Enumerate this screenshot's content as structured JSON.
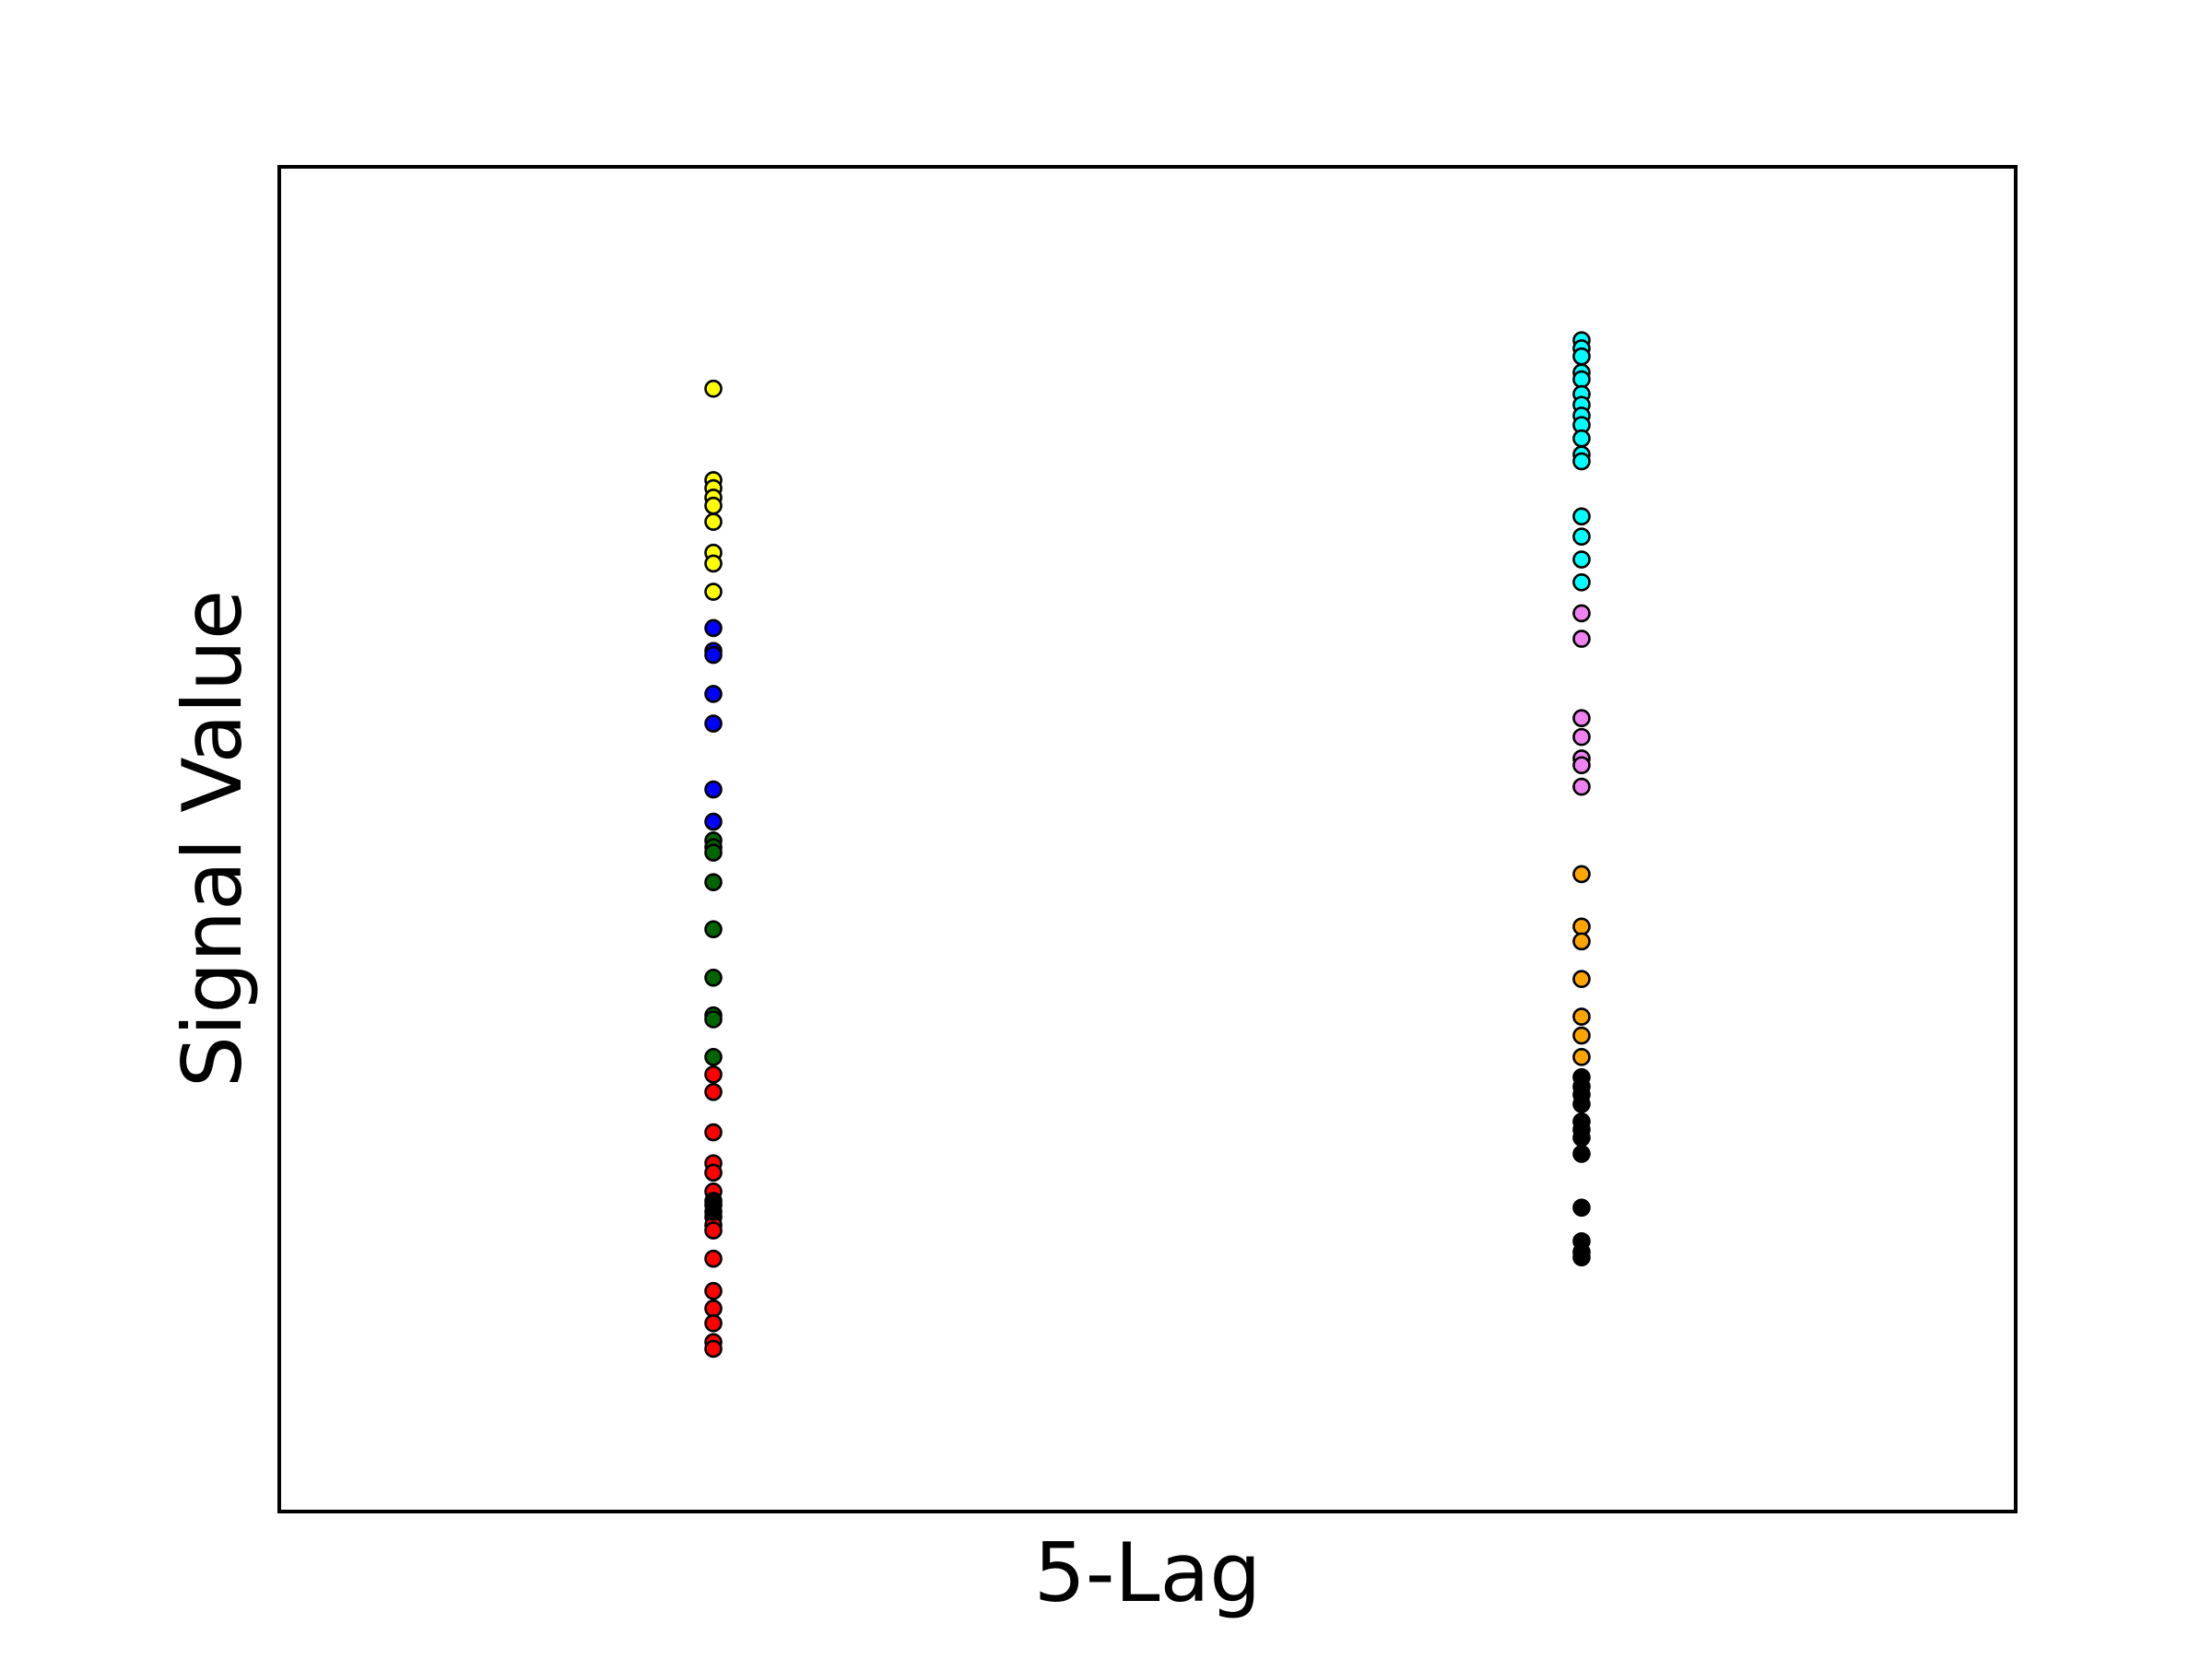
{
  "chart_data": {
    "type": "scatter",
    "title": "",
    "xlabel": "5-Lag",
    "ylabel": "Signal Value",
    "x_ticks_visible": false,
    "y_ticks_visible": false,
    "grid": false,
    "legend": "none",
    "xlim": [
      -0.5,
      1.5
    ],
    "ylim": [
      0,
      100
    ],
    "groups": [
      {
        "x": 0,
        "clusters": [
          {
            "color": "#ffff00",
            "y": [
              83.5,
              76.7,
              76.1,
              75.4,
              74.8,
              73.6,
              71.3,
              70.5,
              68.4
            ]
          },
          {
            "color": "#0000ff",
            "y": [
              65.7,
              64.0,
              63.7,
              60.8,
              58.6,
              53.7,
              51.3
            ]
          },
          {
            "color": "#006400",
            "y": [
              49.9,
              49.4,
              49.0,
              46.8,
              43.3,
              39.7,
              36.9,
              36.6,
              33.8
            ]
          },
          {
            "color": "#ff0000",
            "y": [
              32.5,
              31.2,
              28.2,
              25.9,
              25.2,
              23.8,
              22.8,
              21.9,
              21.3,
              20.9,
              18.8,
              16.4,
              15.1,
              14.0,
              12.6,
              12.1
            ]
          },
          {
            "color": "#000000",
            "y": [
              23.1,
              22.3
            ]
          }
        ]
      },
      {
        "x": 1,
        "clusters": [
          {
            "color": "#00ffff",
            "y": [
              87.1,
              86.5,
              85.9,
              84.7,
              84.2,
              83.1,
              82.3,
              81.5,
              80.8,
              79.8,
              78.6,
              78.1,
              74.0,
              72.5,
              70.8,
              69.1
            ]
          },
          {
            "color": "#ee82ee",
            "y": [
              66.8,
              64.9,
              59.0,
              57.6,
              56.0,
              55.5,
              53.9
            ]
          },
          {
            "color": "#ffa500",
            "y": [
              47.4,
              43.5,
              42.4,
              39.6,
              36.8,
              35.4,
              33.8
            ]
          },
          {
            "color": "#000000",
            "y": [
              32.3,
              31.6,
              31.0,
              30.3,
              29.0,
              28.4,
              27.8,
              26.6,
              22.6,
              20.1,
              19.3,
              18.9
            ]
          }
        ]
      }
    ]
  }
}
